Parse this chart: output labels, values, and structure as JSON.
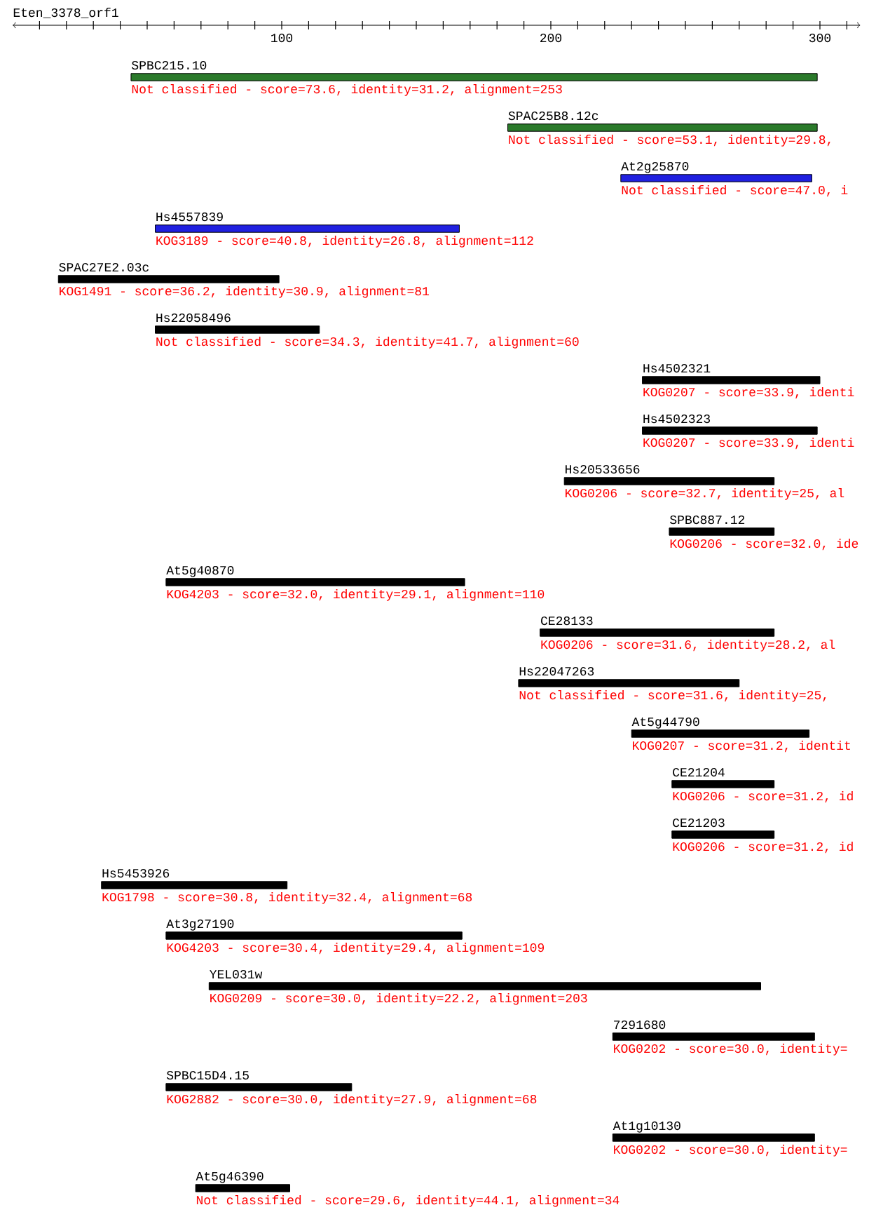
{
  "chart_data": {
    "type": "bar",
    "orientation": "horizontal",
    "title": "Eten_3378_orf1",
    "categories": [
      "SPBC215.10",
      "SPAC25B8.12c",
      "At2g25870",
      "Hs4557839",
      "SPAC27E2.03c",
      "Hs22058496",
      "Hs4502321",
      "Hs4502323",
      "Hs20533656",
      "SPBC887.12",
      "At5g40870",
      "CE28133",
      "Hs22047263",
      "At5g44790",
      "CE21204",
      "CE21203",
      "Hs5453926",
      "At3g27190",
      "YEL031w",
      "7291680",
      "SPBC15D4.15",
      "At1g10130",
      "At5g46390"
    ],
    "base": [
      44,
      184,
      226,
      53,
      17,
      53,
      234,
      234,
      205,
      244,
      57,
      196,
      188,
      230,
      245,
      245,
      33,
      57,
      73,
      223,
      57,
      223,
      68
    ],
    "values": [
      255,
      115,
      71,
      113,
      82,
      61,
      66,
      65,
      78,
      39,
      111,
      87,
      82,
      66,
      38,
      38,
      69,
      110,
      205,
      75,
      69,
      75,
      35
    ],
    "colors": [
      "#2b7a2b",
      "#2b7a2b",
      "#2020e0",
      "#2020e0",
      "#000000",
      "#000000",
      "#000000",
      "#000000",
      "#000000",
      "#000000",
      "#000000",
      "#000000",
      "#000000",
      "#000000",
      "#000000",
      "#000000",
      "#000000",
      "#000000",
      "#000000",
      "#000000",
      "#000000",
      "#000000",
      "#000000"
    ],
    "xlim": [
      0,
      315
    ],
    "xticks": [
      {
        "value": 10,
        "label": null
      },
      {
        "value": 20,
        "label": null
      },
      {
        "value": 30,
        "label": null
      },
      {
        "value": 40,
        "label": null
      },
      {
        "value": 50,
        "label": null
      },
      {
        "value": 60,
        "label": null
      },
      {
        "value": 70,
        "label": null
      },
      {
        "value": 80,
        "label": null
      },
      {
        "value": 90,
        "label": null
      },
      100,
      {
        "value": 110,
        "label": null
      },
      {
        "value": 120,
        "label": null
      },
      {
        "value": 130,
        "label": null
      },
      {
        "value": 140,
        "label": null
      },
      {
        "value": 150,
        "label": null
      },
      {
        "value": 160,
        "label": null
      },
      {
        "value": 170,
        "label": null
      },
      {
        "value": 180,
        "label": null
      },
      {
        "value": 190,
        "label": null
      },
      200,
      {
        "value": 210,
        "label": null
      },
      {
        "value": 220,
        "label": null
      },
      {
        "value": 230,
        "label": null
      },
      {
        "value": 240,
        "label": null
      },
      {
        "value": 250,
        "label": null
      },
      {
        "value": 260,
        "label": null
      },
      {
        "value": 270,
        "label": null
      },
      {
        "value": 280,
        "label": null
      },
      {
        "value": 290,
        "label": null
      },
      300,
      {
        "value": 310,
        "label": null
      }
    ],
    "annotations": [
      "Not classified - score=73.6, identity=31.2, alignment=253",
      "Not classified - score=53.1, identity=29.8,",
      "Not classified - score=47.0, i",
      "KOG3189 - score=40.8, identity=26.8, alignment=112",
      "KOG1491 - score=36.2, identity=30.9, alignment=81",
      "Not classified - score=34.3, identity=41.7, alignment=60",
      "KOG0207 - score=33.9, identi",
      "KOG0207 - score=33.9, identi",
      "KOG0206 - score=32.7, identity=25, al",
      "KOG0206 - score=32.0, ide",
      "KOG4203 - score=32.0, identity=29.1, alignment=110",
      "KOG0206 - score=31.6, identity=28.2, al",
      "Not classified - score=31.6, identity=25,",
      "KOG0207 - score=31.2, identit",
      "KOG0206 - score=31.2, id",
      "KOG0206 - score=31.2, id",
      "KOG1798 - score=30.8, identity=32.4, alignment=68",
      "KOG4203 - score=30.4, identity=29.4, alignment=109",
      "KOG0209 - score=30.0, identity=22.2, alignment=203",
      "KOG0202 - score=30.0, identity=",
      "KOG2882 - score=30.0, identity=27.9, alignment=68",
      "KOG0202 - score=30.0, identity=",
      "Not classified - score=29.6, identity=44.1, alignment=34"
    ]
  }
}
